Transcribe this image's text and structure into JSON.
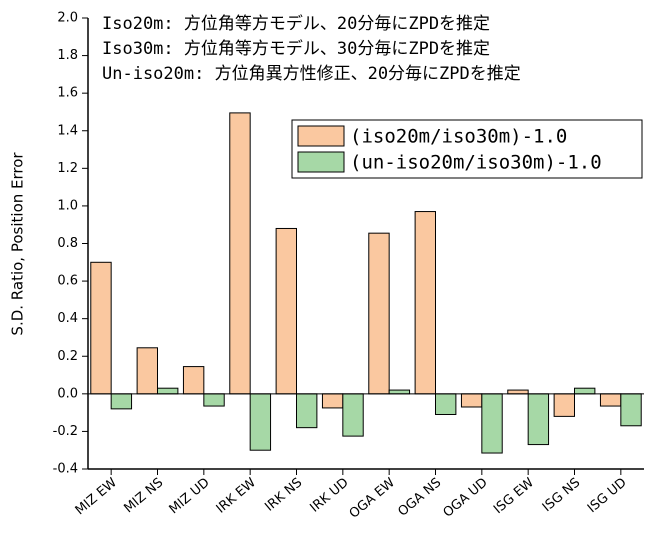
{
  "chart_data": {
    "type": "bar",
    "annotations": [
      "Iso20m:   方位角等方モデル、20分毎にZPDを推定",
      "Iso30m:   方位角等方モデル、30分毎にZPDを推定",
      "Un-iso20m: 方位角異方性修正、20分毎にZPDを推定"
    ],
    "ylabel": "S.D. Ratio, Position Error",
    "categories": [
      "MIZ EW",
      "MIZ NS",
      "MIZ UD",
      "IRK EW",
      "IRK NS",
      "IRK UD",
      "OGA EW",
      "OGA NS",
      "OGA UD",
      "ISG EW",
      "ISG NS",
      "ISG UD"
    ],
    "series": [
      {
        "name": "(iso20m/iso30m)-1.0",
        "color": "#fac8a0",
        "values": [
          0.7,
          0.245,
          0.145,
          1.495,
          0.88,
          -0.075,
          0.855,
          0.97,
          -0.07,
          0.02,
          -0.12,
          -0.065
        ]
      },
      {
        "name": "(un-iso20m/iso30m)-1.0",
        "color": "#a6d8a6",
        "values": [
          -0.08,
          0.03,
          -0.065,
          -0.3,
          -0.18,
          -0.225,
          0.02,
          -0.11,
          -0.315,
          -0.27,
          0.03,
          -0.17
        ]
      }
    ],
    "ylim": [
      -0.4,
      2.0
    ],
    "yticks": [
      -0.4,
      -0.2,
      {
        "value": 0,
        "label": "0.0"
      },
      0.2,
      0.4,
      0.6,
      0.8,
      {
        "value": 1,
        "label": "1.0"
      },
      1.2,
      1.4,
      1.6,
      1.8,
      {
        "value": 2,
        "label": "2.0"
      }
    ],
    "legend": "upper right"
  }
}
